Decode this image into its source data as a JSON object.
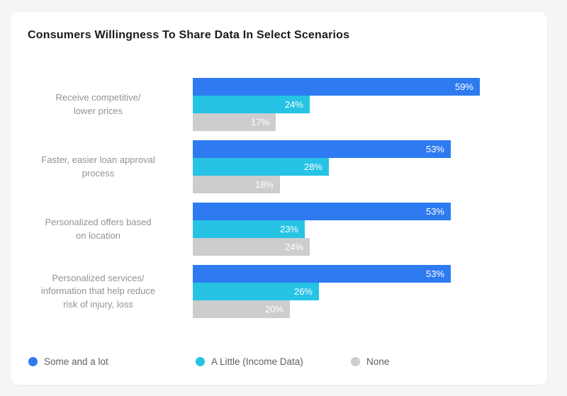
{
  "page": {
    "background_color": "#f5f5f6",
    "card_background_color": "#ffffff"
  },
  "chart_data": {
    "type": "bar",
    "orientation": "horizontal",
    "title": "Consumers Willingness To Share Data In Select Scenarios",
    "categories": [
      "Receive competitive/\nlower prices",
      "Faster, easier loan approval\nprocess",
      "Personalized offers based\non location",
      "Personalized services/\ninformation that help reduce\nrisk of injury, loss"
    ],
    "series": [
      {
        "name": "Some and a lot",
        "color": "#2e7bf1",
        "values": [
          59,
          53,
          53,
          53
        ]
      },
      {
        "name": "A Little (Income Data)",
        "color": "#26c3e5",
        "values": [
          24,
          28,
          23,
          26
        ]
      },
      {
        "name": "None",
        "color": "#cccdce",
        "values": [
          17,
          18,
          24,
          20
        ]
      }
    ],
    "value_suffix": "%",
    "value_label_position": "inside-end",
    "value_label_color": "#ffffff",
    "grid": false,
    "axes_visible": false,
    "legend_position": "bottom-left"
  }
}
